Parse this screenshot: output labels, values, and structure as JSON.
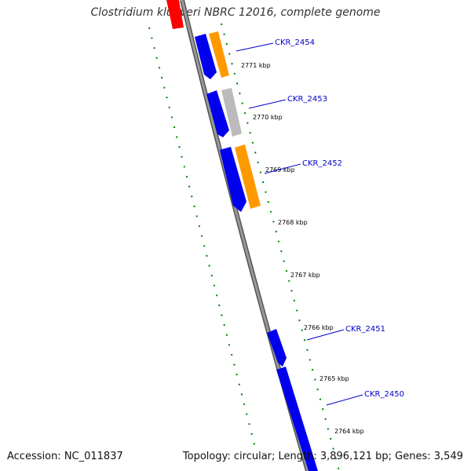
{
  "title": "Clostridium kluyveri NBRC 12016, complete genome",
  "footer": {
    "accession": "Accession: NC_011837",
    "topology": "Topology: circular; Length: 3,896,121 bp; Genes: 3,549"
  },
  "colors": {
    "backbone": "#8a8a8a",
    "forward_gene": "#0000ee",
    "orange_feature": "#ff9900",
    "gray_feature": "#bbbbbb",
    "red_feature": "#ff0000",
    "ticks": "#008000",
    "label": "#0000cc"
  },
  "kbp_labels": [
    {
      "id": "kbp-2771",
      "text": "2771 kbp"
    },
    {
      "id": "kbp-2770",
      "text": "2770 kbp"
    },
    {
      "id": "kbp-2769",
      "text": "2769 kbp"
    },
    {
      "id": "kbp-2768",
      "text": "2768 kbp"
    },
    {
      "id": "kbp-2767",
      "text": "2767 kbp"
    },
    {
      "id": "kbp-2766",
      "text": "2766 kbp"
    },
    {
      "id": "kbp-2765",
      "text": "2765 kbp"
    },
    {
      "id": "kbp-2764",
      "text": "2764 kbp"
    }
  ],
  "gene_labels": [
    {
      "id": "ckr-2454",
      "text": "CKR_2454"
    },
    {
      "id": "ckr-2453",
      "text": "CKR_2453"
    },
    {
      "id": "ckr-2452",
      "text": "CKR_2452"
    },
    {
      "id": "ckr-2451",
      "text": "CKR_2451"
    },
    {
      "id": "ckr-2450",
      "text": "CKR_2450"
    }
  ]
}
